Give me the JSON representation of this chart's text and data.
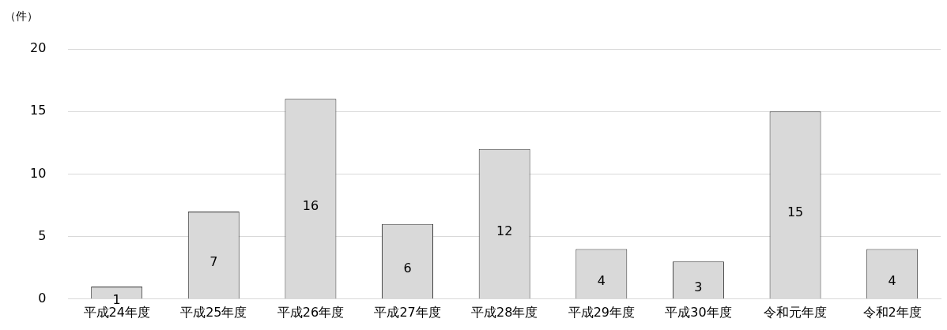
{
  "chart_data": {
    "type": "bar",
    "ylabel": "（件）",
    "categories": [
      "平成24年度",
      "平成25年度",
      "平成26年度",
      "平成27年度",
      "平成28年度",
      "平成29年度",
      "平成30年度",
      "令和元年度",
      "令和2年度"
    ],
    "values": [
      1,
      7,
      16,
      6,
      12,
      4,
      3,
      15,
      4
    ],
    "color": "#d9d9d9",
    "ylim": [
      0,
      20
    ],
    "yticks": [
      0,
      5,
      10,
      15,
      20
    ],
    "grid": "y",
    "legend": false,
    "data_labels": true
  }
}
